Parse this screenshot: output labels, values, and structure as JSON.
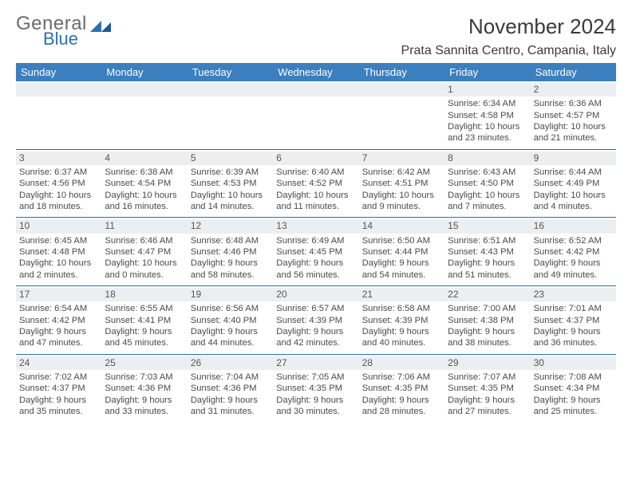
{
  "logo": {
    "word1": "General",
    "word2": "Blue",
    "mark_color": "#2c6fb5",
    "gray": "#6b6b6b"
  },
  "title": "November 2024",
  "location": "Prata Sannita Centro, Campania, Italy",
  "header_bg": "#3b7fbf",
  "accent_line": "#2c6fb5",
  "num_bar_bg": "#eceff1",
  "days_of_week": [
    "Sunday",
    "Monday",
    "Tuesday",
    "Wednesday",
    "Thursday",
    "Friday",
    "Saturday"
  ],
  "weeks": [
    [
      null,
      null,
      null,
      null,
      null,
      {
        "n": "1",
        "sr": "Sunrise: 6:34 AM",
        "ss": "Sunset: 4:58 PM",
        "d1": "Daylight: 10 hours",
        "d2": "and 23 minutes."
      },
      {
        "n": "2",
        "sr": "Sunrise: 6:36 AM",
        "ss": "Sunset: 4:57 PM",
        "d1": "Daylight: 10 hours",
        "d2": "and 21 minutes."
      }
    ],
    [
      {
        "n": "3",
        "sr": "Sunrise: 6:37 AM",
        "ss": "Sunset: 4:56 PM",
        "d1": "Daylight: 10 hours",
        "d2": "and 18 minutes."
      },
      {
        "n": "4",
        "sr": "Sunrise: 6:38 AM",
        "ss": "Sunset: 4:54 PM",
        "d1": "Daylight: 10 hours",
        "d2": "and 16 minutes."
      },
      {
        "n": "5",
        "sr": "Sunrise: 6:39 AM",
        "ss": "Sunset: 4:53 PM",
        "d1": "Daylight: 10 hours",
        "d2": "and 14 minutes."
      },
      {
        "n": "6",
        "sr": "Sunrise: 6:40 AM",
        "ss": "Sunset: 4:52 PM",
        "d1": "Daylight: 10 hours",
        "d2": "and 11 minutes."
      },
      {
        "n": "7",
        "sr": "Sunrise: 6:42 AM",
        "ss": "Sunset: 4:51 PM",
        "d1": "Daylight: 10 hours",
        "d2": "and 9 minutes."
      },
      {
        "n": "8",
        "sr": "Sunrise: 6:43 AM",
        "ss": "Sunset: 4:50 PM",
        "d1": "Daylight: 10 hours",
        "d2": "and 7 minutes."
      },
      {
        "n": "9",
        "sr": "Sunrise: 6:44 AM",
        "ss": "Sunset: 4:49 PM",
        "d1": "Daylight: 10 hours",
        "d2": "and 4 minutes."
      }
    ],
    [
      {
        "n": "10",
        "sr": "Sunrise: 6:45 AM",
        "ss": "Sunset: 4:48 PM",
        "d1": "Daylight: 10 hours",
        "d2": "and 2 minutes."
      },
      {
        "n": "11",
        "sr": "Sunrise: 6:46 AM",
        "ss": "Sunset: 4:47 PM",
        "d1": "Daylight: 10 hours",
        "d2": "and 0 minutes."
      },
      {
        "n": "12",
        "sr": "Sunrise: 6:48 AM",
        "ss": "Sunset: 4:46 PM",
        "d1": "Daylight: 9 hours",
        "d2": "and 58 minutes."
      },
      {
        "n": "13",
        "sr": "Sunrise: 6:49 AM",
        "ss": "Sunset: 4:45 PM",
        "d1": "Daylight: 9 hours",
        "d2": "and 56 minutes."
      },
      {
        "n": "14",
        "sr": "Sunrise: 6:50 AM",
        "ss": "Sunset: 4:44 PM",
        "d1": "Daylight: 9 hours",
        "d2": "and 54 minutes."
      },
      {
        "n": "15",
        "sr": "Sunrise: 6:51 AM",
        "ss": "Sunset: 4:43 PM",
        "d1": "Daylight: 9 hours",
        "d2": "and 51 minutes."
      },
      {
        "n": "16",
        "sr": "Sunrise: 6:52 AM",
        "ss": "Sunset: 4:42 PM",
        "d1": "Daylight: 9 hours",
        "d2": "and 49 minutes."
      }
    ],
    [
      {
        "n": "17",
        "sr": "Sunrise: 6:54 AM",
        "ss": "Sunset: 4:42 PM",
        "d1": "Daylight: 9 hours",
        "d2": "and 47 minutes."
      },
      {
        "n": "18",
        "sr": "Sunrise: 6:55 AM",
        "ss": "Sunset: 4:41 PM",
        "d1": "Daylight: 9 hours",
        "d2": "and 45 minutes."
      },
      {
        "n": "19",
        "sr": "Sunrise: 6:56 AM",
        "ss": "Sunset: 4:40 PM",
        "d1": "Daylight: 9 hours",
        "d2": "and 44 minutes."
      },
      {
        "n": "20",
        "sr": "Sunrise: 6:57 AM",
        "ss": "Sunset: 4:39 PM",
        "d1": "Daylight: 9 hours",
        "d2": "and 42 minutes."
      },
      {
        "n": "21",
        "sr": "Sunrise: 6:58 AM",
        "ss": "Sunset: 4:39 PM",
        "d1": "Daylight: 9 hours",
        "d2": "and 40 minutes."
      },
      {
        "n": "22",
        "sr": "Sunrise: 7:00 AM",
        "ss": "Sunset: 4:38 PM",
        "d1": "Daylight: 9 hours",
        "d2": "and 38 minutes."
      },
      {
        "n": "23",
        "sr": "Sunrise: 7:01 AM",
        "ss": "Sunset: 4:37 PM",
        "d1": "Daylight: 9 hours",
        "d2": "and 36 minutes."
      }
    ],
    [
      {
        "n": "24",
        "sr": "Sunrise: 7:02 AM",
        "ss": "Sunset: 4:37 PM",
        "d1": "Daylight: 9 hours",
        "d2": "and 35 minutes."
      },
      {
        "n": "25",
        "sr": "Sunrise: 7:03 AM",
        "ss": "Sunset: 4:36 PM",
        "d1": "Daylight: 9 hours",
        "d2": "and 33 minutes."
      },
      {
        "n": "26",
        "sr": "Sunrise: 7:04 AM",
        "ss": "Sunset: 4:36 PM",
        "d1": "Daylight: 9 hours",
        "d2": "and 31 minutes."
      },
      {
        "n": "27",
        "sr": "Sunrise: 7:05 AM",
        "ss": "Sunset: 4:35 PM",
        "d1": "Daylight: 9 hours",
        "d2": "and 30 minutes."
      },
      {
        "n": "28",
        "sr": "Sunrise: 7:06 AM",
        "ss": "Sunset: 4:35 PM",
        "d1": "Daylight: 9 hours",
        "d2": "and 28 minutes."
      },
      {
        "n": "29",
        "sr": "Sunrise: 7:07 AM",
        "ss": "Sunset: 4:35 PM",
        "d1": "Daylight: 9 hours",
        "d2": "and 27 minutes."
      },
      {
        "n": "30",
        "sr": "Sunrise: 7:08 AM",
        "ss": "Sunset: 4:34 PM",
        "d1": "Daylight: 9 hours",
        "d2": "and 25 minutes."
      }
    ]
  ]
}
